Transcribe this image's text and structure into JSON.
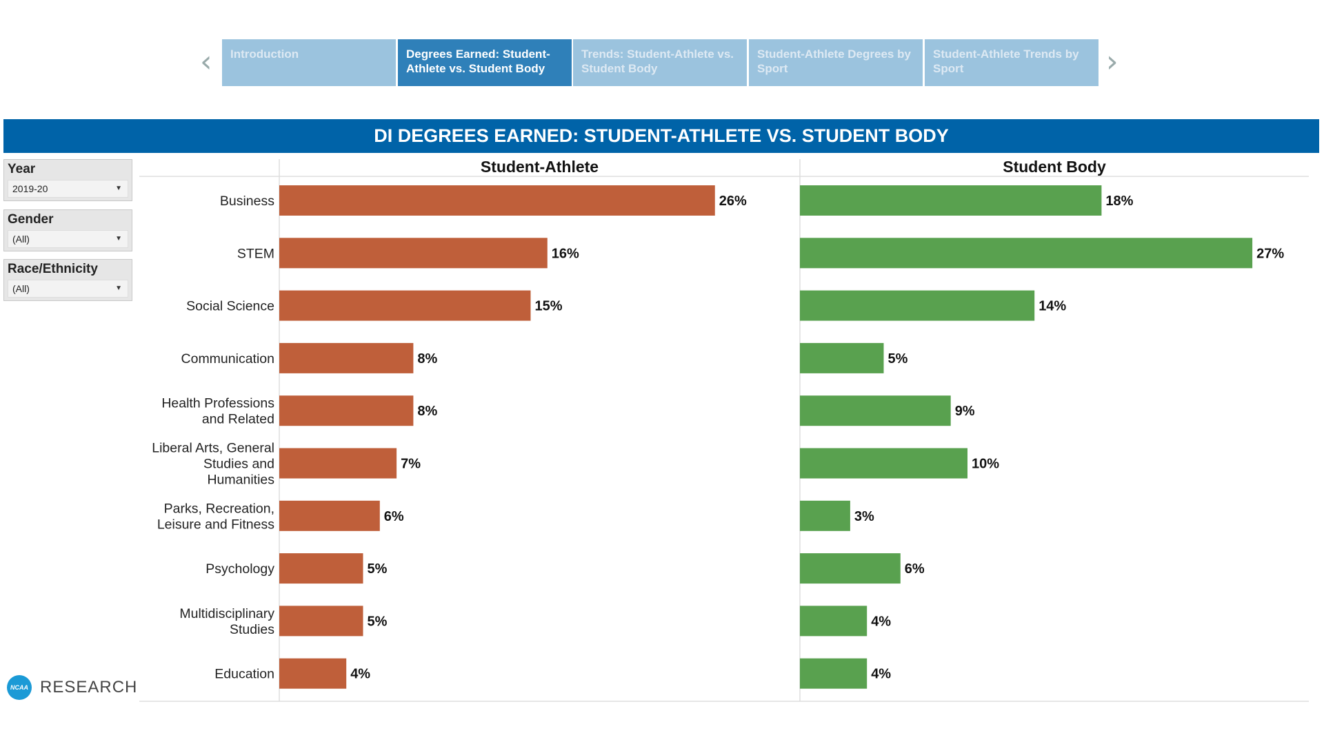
{
  "nav": {
    "tabs": [
      {
        "label": "Introduction",
        "active": false
      },
      {
        "label": "Degrees Earned: Student-Athlete vs. Student Body",
        "active": true
      },
      {
        "label": "Trends: Student-Athlete vs. Student Body",
        "active": false
      },
      {
        "label": "Student-Athlete Degrees by Sport",
        "active": false
      },
      {
        "label": "Student-Athlete Trends by Sport",
        "active": false
      }
    ],
    "prev": "‹",
    "next": "›"
  },
  "title": "DI DEGREES EARNED: STUDENT-ATHLETE VS. STUDENT BODY",
  "filters": [
    {
      "label": "Year",
      "value": "2019-20"
    },
    {
      "label": "Gender",
      "value": "(All)"
    },
    {
      "label": "Race/Ethnicity",
      "value": "(All)"
    }
  ],
  "logo": {
    "badge": "NCAA",
    "text": "RESEARCH"
  },
  "chart_data": {
    "type": "bar",
    "orientation": "horizontal",
    "categories": [
      "Business",
      "STEM",
      "Social Science",
      "Communication",
      "Health Professions and Related",
      "Liberal Arts, General Studies and Humanities",
      "Parks, Recreation, Leisure and Fitness",
      "Psychology",
      "Multidisciplinary Studies",
      "Education"
    ],
    "category_lines": [
      [
        "Business"
      ],
      [
        "STEM"
      ],
      [
        "Social Science"
      ],
      [
        "Communication"
      ],
      [
        "Health Professions",
        "and Related"
      ],
      [
        "Liberal Arts, General",
        "Studies and",
        "Humanities"
      ],
      [
        "Parks, Recreation,",
        "Leisure and Fitness"
      ],
      [
        "Psychology"
      ],
      [
        "Multidisciplinary",
        "Studies"
      ],
      [
        "Education"
      ]
    ],
    "series": [
      {
        "name": "Student-Athlete",
        "color": "#bf5f3a",
        "values": [
          26,
          16,
          15,
          8,
          8,
          7,
          6,
          5,
          5,
          4
        ]
      },
      {
        "name": "Student Body",
        "color": "#59a14f",
        "values": [
          18,
          27,
          14,
          5,
          9,
          10,
          3,
          6,
          4,
          4
        ]
      }
    ],
    "unit": "%",
    "xlim": [
      0,
      30
    ]
  }
}
